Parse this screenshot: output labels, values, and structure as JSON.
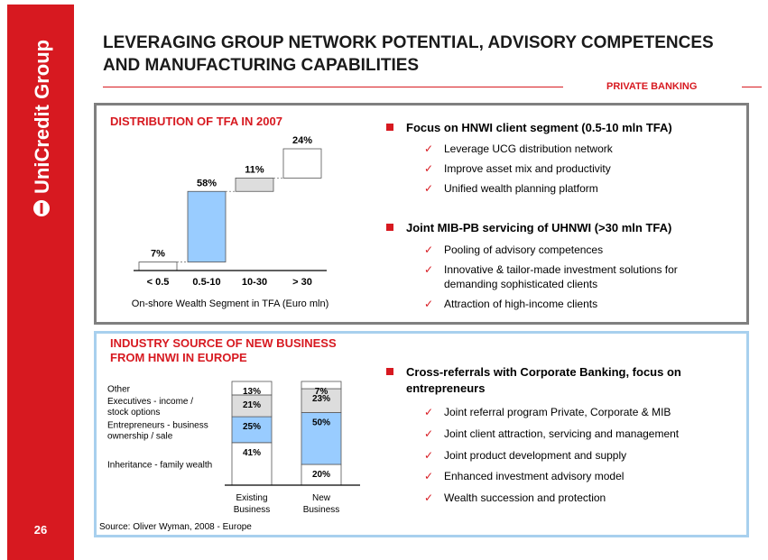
{
  "brand": {
    "name": "UniCredit Group",
    "color": "#d71920"
  },
  "page_number": "26",
  "title": "LEVERAGING GROUP NETWORK POTENTIAL, ADVISORY COMPETENCES AND MANUFACTURING CAPABILITIES",
  "section_tag": "PRIVATE BANKING",
  "top_box": {
    "subtitle": "DISTRIBUTION OF TFA IN 2007",
    "bullets": [
      {
        "label": "Focus on HNWI client segment (0.5-10 mln TFA)",
        "items": [
          "Leverage UCG distribution network",
          "Improve asset mix and productivity",
          "Unified wealth planning platform"
        ]
      },
      {
        "label": "Joint MIB-PB servicing of UHNWI (>30 mln TFA)",
        "items": [
          "Pooling of advisory competences",
          "Innovative & tailor-made investment solutions for demanding sophisticated clients",
          "Attraction of high-income clients"
        ]
      }
    ]
  },
  "bottom_box": {
    "subtitle": "INDUSTRY SOURCE OF NEW BUSINESS FROM HNWI IN EUROPE",
    "bullets": [
      {
        "label": "Cross-referrals with Corporate Banking, focus on entrepreneurs",
        "items": [
          "Joint referral program Private, Corporate & MIB",
          "Joint client attraction, servicing and management",
          "Joint product development and supply",
          "Enhanced investment advisory model",
          "Wealth succession and protection"
        ]
      }
    ],
    "source": "Source: Oliver Wyman, 2008 - Europe"
  },
  "chart_data": [
    {
      "type": "bar",
      "subtype": "waterfall",
      "title": "DISTRIBUTION OF TFA IN 2007",
      "categories": [
        "< 0.5",
        "0.5-10",
        "10-30",
        "> 30"
      ],
      "values": [
        7,
        58,
        11,
        24
      ],
      "labels": [
        "7%",
        "58%",
        "11%",
        "24%"
      ],
      "colors": [
        "#ffffff",
        "#99ccff",
        "#dddddd",
        "#ffffff"
      ],
      "xlabel": "On-shore Wealth Segment in TFA (Euro mln)",
      "ylim": [
        0,
        100
      ]
    },
    {
      "type": "bar",
      "subtype": "stacked-100",
      "categories": [
        "Existing Business",
        "New Business"
      ],
      "category_lines": [
        [
          "Existing",
          "Business"
        ],
        [
          "New",
          "Business"
        ]
      ],
      "series": [
        {
          "name": "Inheritance - family wealth",
          "values": [
            41,
            20
          ],
          "color": "#ffffff"
        },
        {
          "name": "Entrepreneurs - business ownership / sale",
          "name_lines": [
            "Entrepreneurs - business",
            "ownership / sale"
          ],
          "values": [
            25,
            50
          ],
          "color": "#99ccff"
        },
        {
          "name": "Executives - income / stock options",
          "name_lines": [
            "Executives - income /",
            "stock options"
          ],
          "values": [
            21,
            23
          ],
          "color": "#dddddd"
        },
        {
          "name": "Other",
          "values": [
            13,
            7
          ],
          "color": "#ffffff"
        }
      ],
      "ylim": [
        0,
        100
      ]
    }
  ]
}
